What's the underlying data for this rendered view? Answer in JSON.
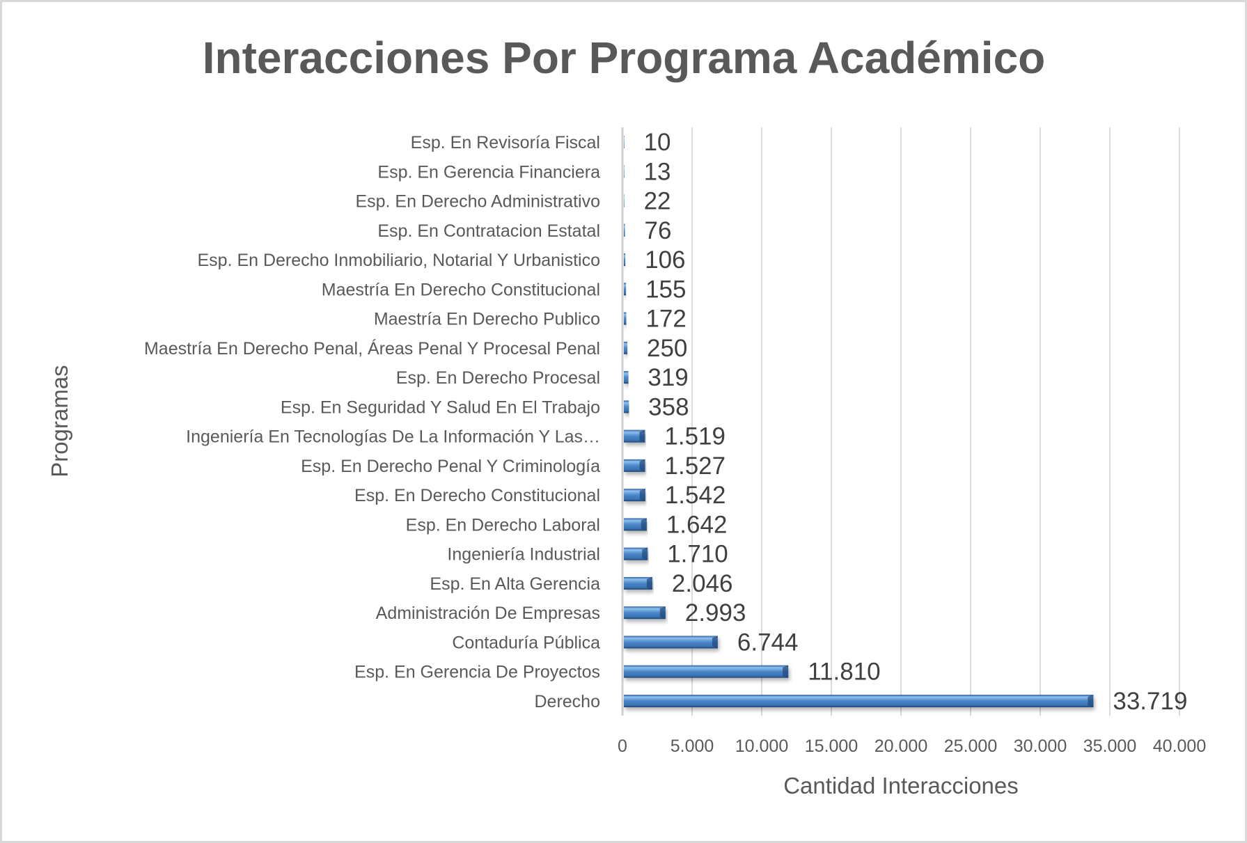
{
  "chart_data": {
    "type": "bar",
    "orientation": "horizontal",
    "title": "Interacciones Por Programa Académico",
    "xlabel": "Cantidad Interacciones",
    "ylabel": "Programas",
    "xlim": [
      0,
      40000
    ],
    "xticks": [
      0,
      5000,
      10000,
      15000,
      20000,
      25000,
      30000,
      35000,
      40000
    ],
    "xtick_labels": [
      "0",
      "5.000",
      "10.000",
      "15.000",
      "20.000",
      "25.000",
      "30.000",
      "35.000",
      "40.000"
    ],
    "grid": true,
    "legend": "none",
    "bar_color": "#4a86c8",
    "categories": [
      "Esp. En Revisoría Fiscal",
      "Esp. En Gerencia Financiera",
      "Esp. En Derecho Administrativo",
      "Esp. En Contratacion Estatal",
      "Esp. En Derecho Inmobiliario, Notarial Y Urbanistico",
      "Maestría En Derecho Constitucional",
      "Maestría En Derecho Publico",
      "Maestría En Derecho Penal, Áreas Penal Y Procesal Penal",
      "Esp. En Derecho Procesal",
      "Esp. En Seguridad Y Salud En El Trabajo",
      "Ingeniería En Tecnologías De La Información Y Las…",
      "Esp. En Derecho Penal Y Criminología",
      "Esp. En Derecho Constitucional",
      "Esp. En Derecho Laboral",
      "Ingeniería Industrial",
      "Esp. En Alta Gerencia",
      "Administración De Empresas",
      "Contaduría Pública",
      "Esp. En Gerencia De Proyectos",
      "Derecho"
    ],
    "values": [
      10,
      13,
      22,
      76,
      106,
      155,
      172,
      250,
      319,
      358,
      1519,
      1527,
      1542,
      1642,
      1710,
      2046,
      2993,
      6744,
      11810,
      33719
    ],
    "value_labels": [
      "10",
      "13",
      "22",
      "76",
      "106",
      "155",
      "172",
      "250",
      "319",
      "358",
      "1.519",
      "1.527",
      "1.542",
      "1.642",
      "1.710",
      "2.046",
      "2.993",
      "6.744",
      "11.810",
      "33.719"
    ]
  }
}
